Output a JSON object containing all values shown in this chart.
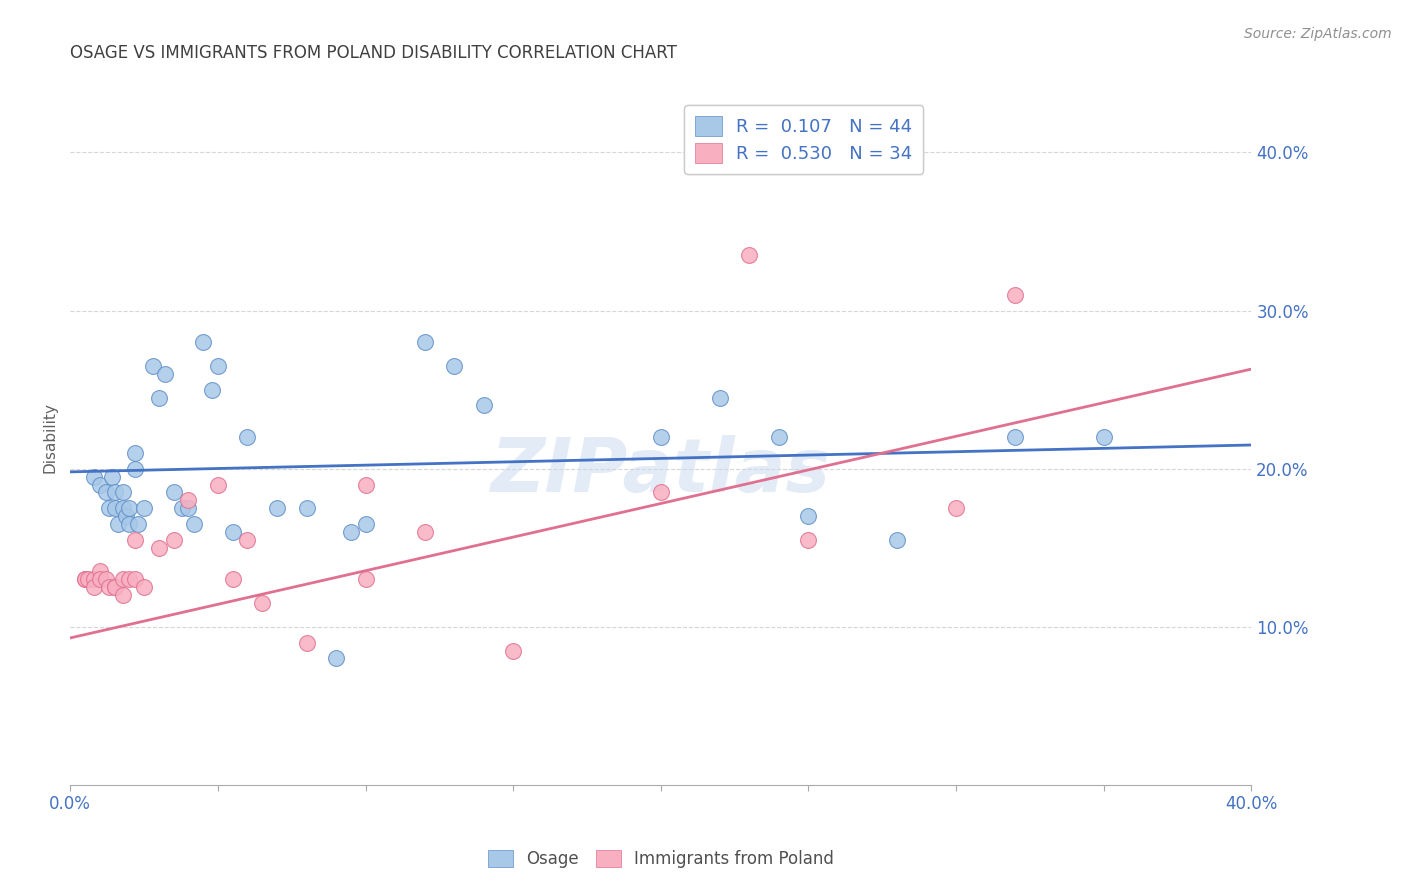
{
  "title": "OSAGE VS IMMIGRANTS FROM POLAND DISABILITY CORRELATION CHART",
  "source": "Source: ZipAtlas.com",
  "ylabel": "Disability",
  "xlim": [
    0.0,
    0.4
  ],
  "ylim": [
    0.0,
    0.44
  ],
  "xticks_minor": [
    0.0,
    0.05,
    0.1,
    0.15,
    0.2,
    0.25,
    0.3,
    0.35,
    0.4
  ],
  "yticks": [
    0.1,
    0.2,
    0.3,
    0.4
  ],
  "background_color": "#ffffff",
  "grid_color": "#cccccc",
  "blue_color": "#a8c8e8",
  "blue_edge_color": "#6090c8",
  "blue_line_color": "#4472c4",
  "pink_color": "#f8b0c0",
  "pink_edge_color": "#e07090",
  "pink_line_color": "#e07090",
  "legend_R1": "R =  0.107",
  "legend_N1": "N = 44",
  "legend_R2": "R =  0.530",
  "legend_N2": "N = 34",
  "legend_label1": "Osage",
  "legend_label2": "Immigrants from Poland",
  "title_color": "#404040",
  "axis_color": "#4472c4",
  "blue_scatter_x": [
    0.008,
    0.01,
    0.012,
    0.013,
    0.014,
    0.015,
    0.015,
    0.016,
    0.018,
    0.018,
    0.019,
    0.02,
    0.02,
    0.022,
    0.022,
    0.023,
    0.025,
    0.028,
    0.03,
    0.032,
    0.035,
    0.038,
    0.04,
    0.042,
    0.045,
    0.048,
    0.05,
    0.055,
    0.06,
    0.07,
    0.08,
    0.09,
    0.095,
    0.1,
    0.12,
    0.13,
    0.14,
    0.2,
    0.22,
    0.24,
    0.25,
    0.28,
    0.32,
    0.35
  ],
  "blue_scatter_y": [
    0.195,
    0.19,
    0.185,
    0.175,
    0.195,
    0.185,
    0.175,
    0.165,
    0.185,
    0.175,
    0.17,
    0.175,
    0.165,
    0.21,
    0.2,
    0.165,
    0.175,
    0.265,
    0.245,
    0.26,
    0.185,
    0.175,
    0.175,
    0.165,
    0.28,
    0.25,
    0.265,
    0.16,
    0.22,
    0.175,
    0.175,
    0.08,
    0.16,
    0.165,
    0.28,
    0.265,
    0.24,
    0.22,
    0.245,
    0.22,
    0.17,
    0.155,
    0.22,
    0.22
  ],
  "pink_scatter_x": [
    0.005,
    0.005,
    0.006,
    0.008,
    0.008,
    0.01,
    0.01,
    0.012,
    0.013,
    0.015,
    0.015,
    0.018,
    0.018,
    0.02,
    0.022,
    0.022,
    0.025,
    0.03,
    0.035,
    0.04,
    0.05,
    0.055,
    0.06,
    0.065,
    0.08,
    0.1,
    0.1,
    0.12,
    0.15,
    0.2,
    0.23,
    0.25,
    0.3,
    0.32
  ],
  "pink_scatter_y": [
    0.13,
    0.13,
    0.13,
    0.13,
    0.125,
    0.135,
    0.13,
    0.13,
    0.125,
    0.125,
    0.125,
    0.13,
    0.12,
    0.13,
    0.155,
    0.13,
    0.125,
    0.15,
    0.155,
    0.18,
    0.19,
    0.13,
    0.155,
    0.115,
    0.09,
    0.19,
    0.13,
    0.16,
    0.085,
    0.185,
    0.335,
    0.155,
    0.175,
    0.31
  ],
  "blue_line_x": [
    0.0,
    0.4
  ],
  "blue_line_y": [
    0.198,
    0.215
  ],
  "pink_line_x": [
    0.0,
    0.4
  ],
  "pink_line_y": [
    0.093,
    0.263
  ],
  "watermark": "ZIPatlas",
  "watermark_color": "#c8d8ee"
}
